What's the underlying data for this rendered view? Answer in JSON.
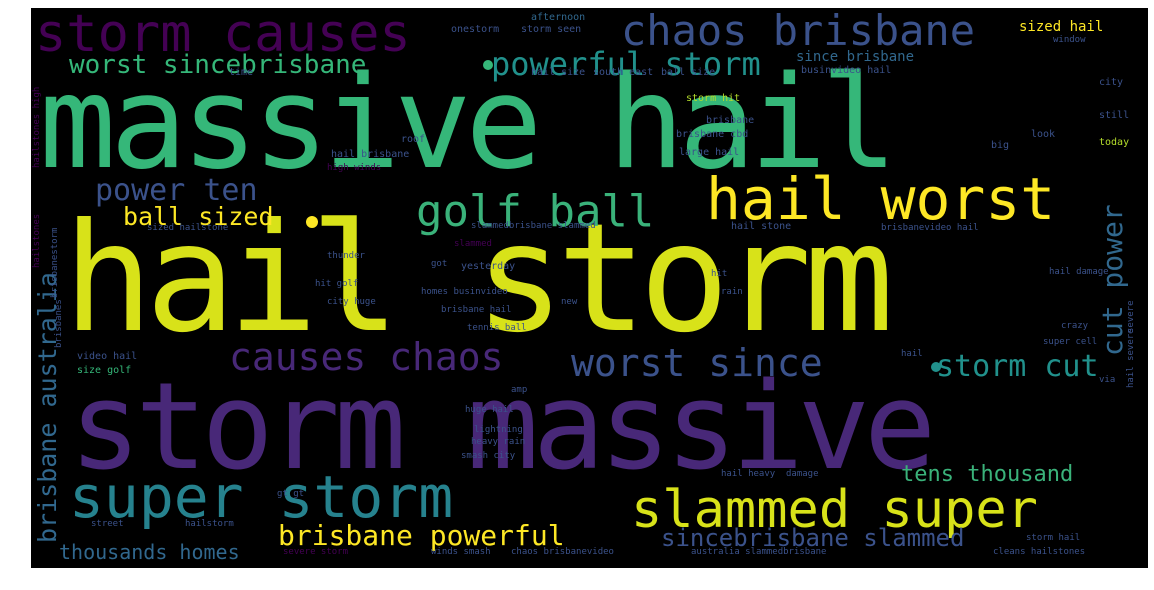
{
  "palette": {
    "background": "#000000",
    "yellow": "#fde725",
    "lime": "#b5de2b",
    "green": "#35b779",
    "seagreen": "#3ab27a",
    "teal": "#21918c",
    "cyan": "#26828e",
    "blue": "#3b528b",
    "indigo": "#31688e",
    "purple": "#440154",
    "violet": "#482878"
  },
  "words": [
    {
      "text": "massive hail",
      "weight": 1.0,
      "color": "#35b779"
    },
    {
      "text": "hail storm",
      "weight": 1.0,
      "color": "#d8e219"
    },
    {
      "text": "storm massive",
      "weight": 0.95,
      "color": "#482878"
    },
    {
      "text": "storm causes",
      "weight": 0.45,
      "color": "#440154"
    },
    {
      "text": "chaos brisbane",
      "weight": 0.4,
      "color": "#3b528b"
    },
    {
      "text": "worst sincebrisbane",
      "weight": 0.25,
      "color": "#35b779"
    },
    {
      "text": "powerful storm",
      "weight": 0.3,
      "color": "#21918c"
    },
    {
      "text": "hail worst",
      "weight": 0.5,
      "color": "#fde725"
    },
    {
      "text": "golf ball",
      "weight": 0.4,
      "color": "#3ab27a"
    },
    {
      "text": "super storm",
      "weight": 0.55,
      "color": "#26828e"
    },
    {
      "text": "slammed super",
      "weight": 0.5,
      "color": "#d8e219"
    },
    {
      "text": "causes chaos",
      "weight": 0.35,
      "color": "#482878"
    },
    {
      "text": "worst since",
      "weight": 0.3,
      "color": "#3b528b"
    },
    {
      "text": "power ten",
      "weight": 0.25,
      "color": "#3b528b"
    },
    {
      "text": "ball sized",
      "weight": 0.2,
      "color": "#fde725"
    },
    {
      "text": "brisbane australia",
      "weight": 0.25,
      "color": "#31688e"
    },
    {
      "text": "cut power",
      "weight": 0.25,
      "color": "#31688e"
    },
    {
      "text": "storm cut",
      "weight": 0.25,
      "color": "#21918c"
    },
    {
      "text": "tens thousand",
      "weight": 0.2,
      "color": "#3ab27a"
    },
    {
      "text": "brisbane powerful",
      "weight": 0.22,
      "color": "#fde725"
    },
    {
      "text": "sincebrisbane slammed",
      "weight": 0.2,
      "color": "#3b528b"
    },
    {
      "text": "thousands homes",
      "weight": 0.18,
      "color": "#31688e"
    },
    {
      "text": "sized hail",
      "weight": 0.12,
      "color": "#fde725"
    },
    {
      "text": "since brisbane",
      "weight": 0.12,
      "color": "#31688e"
    },
    {
      "text": "afternoon",
      "weight": 0.08,
      "color": "#31688e"
    },
    {
      "text": "onestorm",
      "weight": 0.08,
      "color": "#3b528b"
    },
    {
      "text": "storm seen",
      "weight": 0.08,
      "color": "#3b528b"
    },
    {
      "text": "window",
      "weight": 0.08,
      "color": "#3b528b"
    },
    {
      "text": "time",
      "weight": 0.08,
      "color": "#3b528b"
    },
    {
      "text": "hail size",
      "weight": 0.08,
      "color": "#3b528b"
    },
    {
      "text": "south east",
      "weight": 0.08,
      "color": "#3b528b"
    },
    {
      "text": "ball size",
      "weight": 0.08,
      "color": "#3b528b"
    },
    {
      "text": "businvideo hail",
      "weight": 0.08,
      "color": "#3b528b"
    },
    {
      "text": "city",
      "weight": 0.08,
      "color": "#3b528b"
    },
    {
      "text": "storm hit",
      "weight": 0.08,
      "color": "#b5de2b"
    },
    {
      "text": "brisbane",
      "weight": 0.08,
      "color": "#3b528b"
    },
    {
      "text": "hailstones high",
      "weight": 0.08,
      "color": "#440154"
    },
    {
      "text": "still",
      "weight": 0.08,
      "color": "#3b528b"
    },
    {
      "text": "roof",
      "weight": 0.08,
      "color": "#3b528b"
    },
    {
      "text": "brisbane cbd",
      "weight": 0.08,
      "color": "#3b528b"
    },
    {
      "text": "look",
      "weight": 0.08,
      "color": "#3b528b"
    },
    {
      "text": "big",
      "weight": 0.08,
      "color": "#3b528b"
    },
    {
      "text": "large hail",
      "weight": 0.08,
      "color": "#3b528b"
    },
    {
      "text": "today",
      "weight": 0.08,
      "color": "#b5de2b"
    },
    {
      "text": "hail brisbane",
      "weight": 0.08,
      "color": "#3b528b"
    },
    {
      "text": "high winds",
      "weight": 0.08,
      "color": "#440154"
    },
    {
      "text": "sized hailstone",
      "weight": 0.08,
      "color": "#3b528b"
    },
    {
      "text": "slammedbrisbane slammed",
      "weight": 0.08,
      "color": "#3b528b"
    },
    {
      "text": "hail stone",
      "weight": 0.08,
      "color": "#3b528b"
    },
    {
      "text": "brisbanevideo hail",
      "weight": 0.08,
      "color": "#3b528b"
    },
    {
      "text": "slammed",
      "weight": 0.08,
      "color": "#440154"
    },
    {
      "text": "hailstones",
      "weight": 0.08,
      "color": "#440154"
    },
    {
      "text": "brisbanestorm",
      "weight": 0.08,
      "color": "#3b528b"
    },
    {
      "text": "thunder",
      "weight": 0.08,
      "color": "#3b528b"
    },
    {
      "text": "got",
      "weight": 0.08,
      "color": "#3b528b"
    },
    {
      "text": "yesterday",
      "weight": 0.08,
      "color": "#3b528b"
    },
    {
      "text": "hit",
      "weight": 0.08,
      "color": "#3b528b"
    },
    {
      "text": "hail damage",
      "weight": 0.08,
      "color": "#3b528b"
    },
    {
      "text": "hit golf",
      "weight": 0.08,
      "color": "#3b528b"
    },
    {
      "text": "homes businvideo",
      "weight": 0.08,
      "color": "#3b528b"
    },
    {
      "text": "rain",
      "weight": 0.08,
      "color": "#3b528b"
    },
    {
      "text": "city huge",
      "weight": 0.08,
      "color": "#3b528b"
    },
    {
      "text": "new",
      "weight": 0.08,
      "color": "#3b528b"
    },
    {
      "text": "brisbane hail",
      "weight": 0.08,
      "color": "#3b528b"
    },
    {
      "text": "severe",
      "weight": 0.08,
      "color": "#3b528b"
    },
    {
      "text": "tennis ball",
      "weight": 0.08,
      "color": "#3b528b"
    },
    {
      "text": "crazy",
      "weight": 0.08,
      "color": "#3b528b"
    },
    {
      "text": "brisbanes",
      "weight": 0.08,
      "color": "#3b528b"
    },
    {
      "text": "hail severe",
      "weight": 0.08,
      "color": "#3b528b"
    },
    {
      "text": "super cell",
      "weight": 0.08,
      "color": "#3b528b"
    },
    {
      "text": "video hail",
      "weight": 0.08,
      "color": "#3b528b"
    },
    {
      "text": "size golf",
      "weight": 0.08,
      "color": "#35b779"
    },
    {
      "text": "hail",
      "weight": 0.08,
      "color": "#3b528b"
    },
    {
      "text": "via",
      "weight": 0.08,
      "color": "#3b528b"
    },
    {
      "text": "amp",
      "weight": 0.08,
      "color": "#3b528b"
    },
    {
      "text": "huge hail",
      "weight": 0.08,
      "color": "#3b528b"
    },
    {
      "text": "lightning",
      "weight": 0.08,
      "color": "#3b528b"
    },
    {
      "text": "heavy rain",
      "weight": 0.08,
      "color": "#3b528b"
    },
    {
      "text": "smash city",
      "weight": 0.08,
      "color": "#3b528b"
    },
    {
      "text": "hail heavy",
      "weight": 0.08,
      "color": "#3b528b"
    },
    {
      "text": "damage",
      "weight": 0.08,
      "color": "#3b528b"
    },
    {
      "text": "gt gt",
      "weight": 0.08,
      "color": "#3b528b"
    },
    {
      "text": "street",
      "weight": 0.08,
      "color": "#3b528b"
    },
    {
      "text": "hailstorm",
      "weight": 0.08,
      "color": "#3b528b"
    },
    {
      "text": "severe storm",
      "weight": 0.08,
      "color": "#440154"
    },
    {
      "text": "winds smash",
      "weight": 0.08,
      "color": "#3b528b"
    },
    {
      "text": "chaos brisbanevideo",
      "weight": 0.08,
      "color": "#3b528b"
    },
    {
      "text": "australia slammedbrisbane",
      "weight": 0.08,
      "color": "#3b528b"
    },
    {
      "text": "cleans hailstones",
      "weight": 0.08,
      "color": "#3b528b"
    },
    {
      "text": "storm hail",
      "weight": 0.08,
      "color": "#3b528b"
    }
  ]
}
